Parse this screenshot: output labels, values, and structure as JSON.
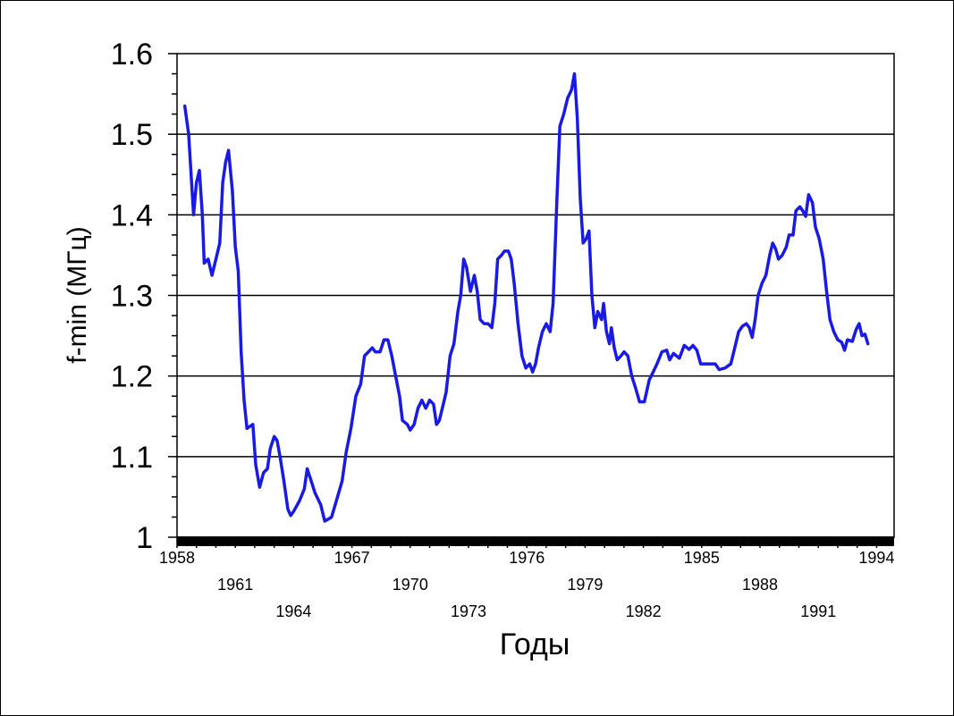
{
  "chart_data": {
    "type": "line",
    "xlabel": "Годы",
    "ylabel": "f-min  (МГц)",
    "xlim": [
      1958.0,
      1994.9
    ],
    "ylim": [
      1.0,
      1.6
    ],
    "yticks": [
      1,
      1.1,
      1.2,
      1.3,
      1.4,
      1.5,
      1.6
    ],
    "ytick_labels": [
      "1",
      "1.1",
      "1.2",
      "1.3",
      "1.4",
      "1.5",
      "1.6"
    ],
    "xticks": [
      {
        "label": "1958",
        "value": 1958,
        "row": 0
      },
      {
        "label": "1961",
        "value": 1961,
        "row": 1
      },
      {
        "label": "1964",
        "value": 1964,
        "row": 2
      },
      {
        "label": "1967",
        "value": 1967,
        "row": 0
      },
      {
        "label": "1970",
        "value": 1970,
        "row": 1
      },
      {
        "label": "1973",
        "value": 1973,
        "row": 2
      },
      {
        "label": "1976",
        "value": 1976,
        "row": 0
      },
      {
        "label": "1979",
        "value": 1979,
        "row": 1
      },
      {
        "label": "1982",
        "value": 1982,
        "row": 2
      },
      {
        "label": "1985",
        "value": 1985,
        "row": 0
      },
      {
        "label": "1988",
        "value": 1988,
        "row": 1
      },
      {
        "label": "1991",
        "value": 1991,
        "row": 2
      },
      {
        "label": "1994",
        "value": 1994,
        "row": 0
      }
    ],
    "grid": "horizontal",
    "line_color": "#1a1ae6",
    "series": [
      {
        "points": [
          [
            1958.4,
            1.535
          ],
          [
            1958.6,
            1.5
          ],
          [
            1958.75,
            1.44
          ],
          [
            1958.85,
            1.4
          ],
          [
            1959.0,
            1.44
          ],
          [
            1959.15,
            1.455
          ],
          [
            1959.3,
            1.4
          ],
          [
            1959.4,
            1.34
          ],
          [
            1959.6,
            1.345
          ],
          [
            1959.8,
            1.325
          ],
          [
            1960.0,
            1.345
          ],
          [
            1960.2,
            1.365
          ],
          [
            1960.35,
            1.44
          ],
          [
            1960.5,
            1.465
          ],
          [
            1960.65,
            1.48
          ],
          [
            1960.85,
            1.43
          ],
          [
            1961.0,
            1.36
          ],
          [
            1961.15,
            1.33
          ],
          [
            1961.3,
            1.23
          ],
          [
            1961.45,
            1.17
          ],
          [
            1961.6,
            1.135
          ],
          [
            1961.9,
            1.14
          ],
          [
            1962.05,
            1.09
          ],
          [
            1962.25,
            1.062
          ],
          [
            1962.45,
            1.08
          ],
          [
            1962.65,
            1.085
          ],
          [
            1962.8,
            1.11
          ],
          [
            1963.0,
            1.125
          ],
          [
            1963.15,
            1.12
          ],
          [
            1963.3,
            1.1
          ],
          [
            1963.5,
            1.07
          ],
          [
            1963.7,
            1.035
          ],
          [
            1963.85,
            1.027
          ],
          [
            1964.0,
            1.032
          ],
          [
            1964.3,
            1.045
          ],
          [
            1964.55,
            1.06
          ],
          [
            1964.7,
            1.085
          ],
          [
            1964.9,
            1.07
          ],
          [
            1965.1,
            1.055
          ],
          [
            1965.4,
            1.04
          ],
          [
            1965.6,
            1.02
          ],
          [
            1965.75,
            1.022
          ],
          [
            1965.95,
            1.025
          ],
          [
            1966.2,
            1.045
          ],
          [
            1966.5,
            1.07
          ],
          [
            1966.7,
            1.105
          ],
          [
            1966.95,
            1.135
          ],
          [
            1967.2,
            1.175
          ],
          [
            1967.45,
            1.19
          ],
          [
            1967.65,
            1.225
          ],
          [
            1967.85,
            1.23
          ],
          [
            1968.05,
            1.235
          ],
          [
            1968.2,
            1.23
          ],
          [
            1968.45,
            1.23
          ],
          [
            1968.65,
            1.245
          ],
          [
            1968.85,
            1.245
          ],
          [
            1969.05,
            1.225
          ],
          [
            1969.25,
            1.2
          ],
          [
            1969.45,
            1.175
          ],
          [
            1969.6,
            1.145
          ],
          [
            1969.85,
            1.14
          ],
          [
            1970.0,
            1.133
          ],
          [
            1970.2,
            1.14
          ],
          [
            1970.4,
            1.16
          ],
          [
            1970.6,
            1.17
          ],
          [
            1970.8,
            1.16
          ],
          [
            1971.0,
            1.17
          ],
          [
            1971.2,
            1.165
          ],
          [
            1971.35,
            1.14
          ],
          [
            1971.5,
            1.145
          ],
          [
            1971.7,
            1.165
          ],
          [
            1971.85,
            1.18
          ],
          [
            1972.05,
            1.225
          ],
          [
            1972.25,
            1.24
          ],
          [
            1972.45,
            1.28
          ],
          [
            1972.6,
            1.3
          ],
          [
            1972.75,
            1.345
          ],
          [
            1972.9,
            1.335
          ],
          [
            1973.1,
            1.305
          ],
          [
            1973.3,
            1.325
          ],
          [
            1973.45,
            1.305
          ],
          [
            1973.6,
            1.27
          ],
          [
            1973.8,
            1.265
          ],
          [
            1974.0,
            1.265
          ],
          [
            1974.2,
            1.26
          ],
          [
            1974.35,
            1.29
          ],
          [
            1974.5,
            1.345
          ],
          [
            1974.7,
            1.35
          ],
          [
            1974.85,
            1.355
          ],
          [
            1975.05,
            1.355
          ],
          [
            1975.2,
            1.345
          ],
          [
            1975.35,
            1.315
          ],
          [
            1975.55,
            1.265
          ],
          [
            1975.75,
            1.225
          ],
          [
            1975.95,
            1.21
          ],
          [
            1976.15,
            1.215
          ],
          [
            1976.3,
            1.205
          ],
          [
            1976.45,
            1.215
          ],
          [
            1976.6,
            1.235
          ],
          [
            1976.8,
            1.255
          ],
          [
            1977.0,
            1.265
          ],
          [
            1977.2,
            1.255
          ],
          [
            1977.35,
            1.29
          ],
          [
            1977.55,
            1.42
          ],
          [
            1977.7,
            1.51
          ],
          [
            1977.9,
            1.525
          ],
          [
            1978.1,
            1.545
          ],
          [
            1978.3,
            1.555
          ],
          [
            1978.45,
            1.575
          ],
          [
            1978.6,
            1.52
          ],
          [
            1978.75,
            1.42
          ],
          [
            1978.9,
            1.365
          ],
          [
            1979.05,
            1.37
          ],
          [
            1979.2,
            1.38
          ],
          [
            1979.35,
            1.3
          ],
          [
            1979.5,
            1.26
          ],
          [
            1979.65,
            1.28
          ],
          [
            1979.85,
            1.27
          ],
          [
            1979.95,
            1.29
          ],
          [
            1980.1,
            1.255
          ],
          [
            1980.25,
            1.24
          ],
          [
            1980.35,
            1.26
          ],
          [
            1980.5,
            1.235
          ],
          [
            1980.65,
            1.22
          ],
          [
            1980.85,
            1.225
          ],
          [
            1981.0,
            1.23
          ],
          [
            1981.2,
            1.225
          ],
          [
            1981.4,
            1.2
          ],
          [
            1981.6,
            1.185
          ],
          [
            1981.8,
            1.168
          ],
          [
            1982.05,
            1.168
          ],
          [
            1982.3,
            1.195
          ],
          [
            1982.5,
            1.205
          ],
          [
            1982.7,
            1.215
          ],
          [
            1982.95,
            1.23
          ],
          [
            1983.2,
            1.232
          ],
          [
            1983.35,
            1.22
          ],
          [
            1983.55,
            1.228
          ],
          [
            1983.85,
            1.222
          ],
          [
            1984.1,
            1.238
          ],
          [
            1984.35,
            1.233
          ],
          [
            1984.55,
            1.238
          ],
          [
            1984.75,
            1.232
          ],
          [
            1984.95,
            1.215
          ],
          [
            1985.3,
            1.215
          ],
          [
            1985.7,
            1.215
          ],
          [
            1985.9,
            1.208
          ],
          [
            1986.2,
            1.21
          ],
          [
            1986.5,
            1.215
          ],
          [
            1986.7,
            1.235
          ],
          [
            1986.9,
            1.255
          ],
          [
            1987.1,
            1.262
          ],
          [
            1987.3,
            1.265
          ],
          [
            1987.45,
            1.26
          ],
          [
            1987.6,
            1.248
          ],
          [
            1987.75,
            1.27
          ],
          [
            1987.9,
            1.3
          ],
          [
            1988.1,
            1.315
          ],
          [
            1988.3,
            1.325
          ],
          [
            1988.5,
            1.35
          ],
          [
            1988.65,
            1.365
          ],
          [
            1988.8,
            1.358
          ],
          [
            1988.95,
            1.345
          ],
          [
            1989.15,
            1.35
          ],
          [
            1989.35,
            1.36
          ],
          [
            1989.5,
            1.375
          ],
          [
            1989.7,
            1.375
          ],
          [
            1989.85,
            1.405
          ],
          [
            1990.05,
            1.41
          ],
          [
            1990.2,
            1.405
          ],
          [
            1990.35,
            1.398
          ],
          [
            1990.5,
            1.425
          ],
          [
            1990.7,
            1.415
          ],
          [
            1990.85,
            1.385
          ],
          [
            1991.05,
            1.37
          ],
          [
            1991.25,
            1.345
          ],
          [
            1991.45,
            1.3
          ],
          [
            1991.6,
            1.27
          ],
          [
            1991.8,
            1.255
          ],
          [
            1992.0,
            1.245
          ],
          [
            1992.2,
            1.242
          ],
          [
            1992.35,
            1.232
          ],
          [
            1992.5,
            1.245
          ],
          [
            1992.75,
            1.243
          ],
          [
            1992.95,
            1.258
          ],
          [
            1993.1,
            1.265
          ],
          [
            1993.25,
            1.25
          ],
          [
            1993.4,
            1.252
          ],
          [
            1993.55,
            1.24
          ]
        ]
      }
    ]
  }
}
